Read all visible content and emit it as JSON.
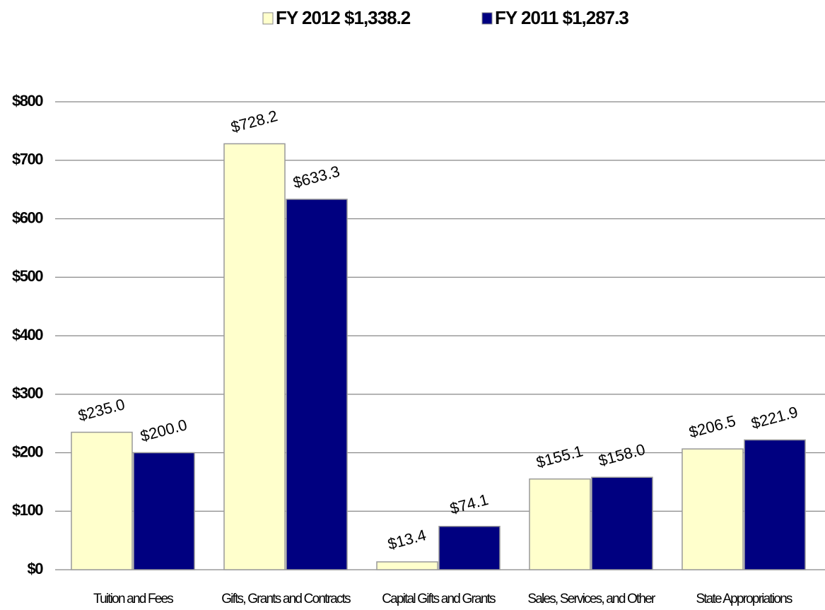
{
  "chart_data": {
    "type": "bar",
    "categories": [
      "Tuition and Fees",
      "Gifts, Grants and Contracts",
      "Capital Gifts and Grants",
      "Sales, Services, and Other",
      "State Appropriations"
    ],
    "series": [
      {
        "name": "FY 2012 $1,338.2",
        "color": "#ffffcc",
        "values": [
          235.0,
          728.2,
          13.4,
          155.1,
          206.5
        ],
        "value_labels": [
          "$235.0",
          "$728.2",
          "$13.4",
          "$155.1",
          "$206.5"
        ]
      },
      {
        "name": "FY 2011 $1,287.3",
        "color": "#000080",
        "values": [
          200.0,
          633.3,
          74.1,
          158.0,
          221.9
        ],
        "value_labels": [
          "$200.0",
          "$633.3",
          "$74.1",
          "$158.0",
          "$221.9"
        ]
      }
    ],
    "ylim": [
      0,
      800
    ],
    "yticks": [
      {
        "value": 0,
        "label": "$0"
      },
      {
        "value": 100,
        "label": "$100"
      },
      {
        "value": 200,
        "label": "$200"
      },
      {
        "value": 300,
        "label": "$300"
      },
      {
        "value": 400,
        "label": "$400"
      },
      {
        "value": 500,
        "label": "$500"
      },
      {
        "value": 600,
        "label": "$600"
      },
      {
        "value": 700,
        "label": "$700"
      },
      {
        "value": 800,
        "label": "$800"
      }
    ],
    "grid": true,
    "legend": "top"
  }
}
